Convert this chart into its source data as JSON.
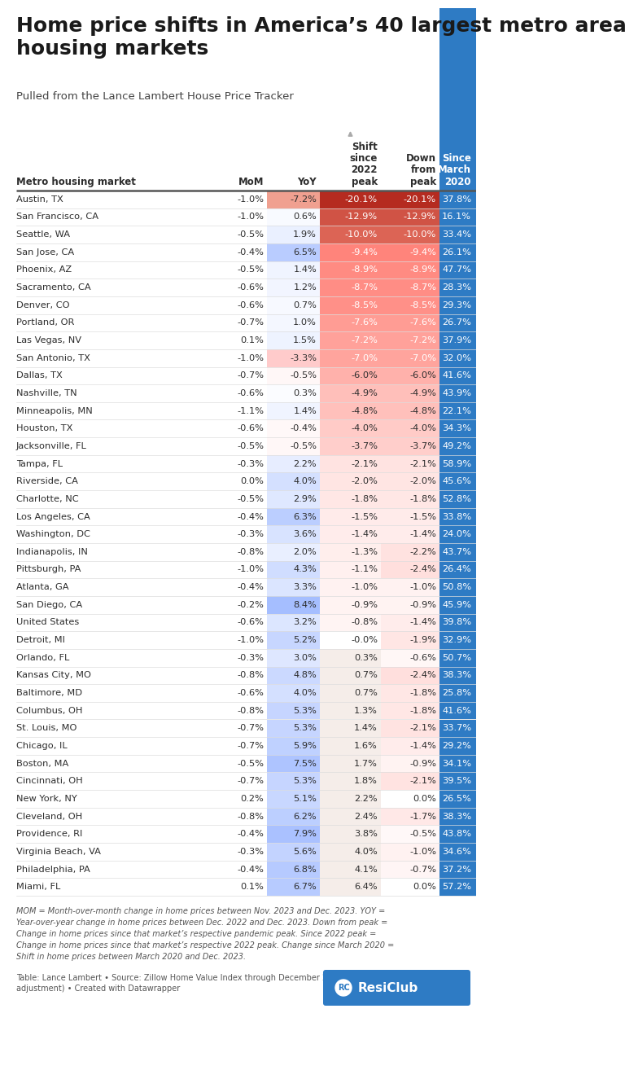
{
  "title": "Home price shifts in America’s 40 largest metro area\nhousing markets",
  "subtitle": "Pulled from the Lance Lambert House Price Tracker",
  "footnote_italic": "MOM = Month-over-month change in home prices between Nov. 2023 and Dec. 2023. YOY =\nYear-over-year change in home prices between Dec. 2022 and Dec. 2023. Down from peak =\nChange in home prices since that market’s respective pandemic peak. Since 2022 peak =\nChange in home prices since that market’s respective 2022 peak. Change since March 2020 =\nShift in home prices between March 2020 and Dec. 2023.",
  "footnote_source": "Table: Lance Lambert • Source: Zillow Home Value Index through December 2023 (with seasonal\nadjustment) • Created with Datawrapper",
  "col_headers": [
    "Metro housing market",
    "MoM",
    "YoY",
    "Shift\nsince\n2022\npeak",
    "Down\nfrom\npeak",
    "Since\nMarch\n2020"
  ],
  "rows": [
    [
      "Austin, TX",
      "-1.0%",
      "-7.2%",
      "-20.1%",
      "-20.1%",
      "37.8%"
    ],
    [
      "San Francisco, CA",
      "-1.0%",
      "0.6%",
      "-12.9%",
      "-12.9%",
      "16.1%"
    ],
    [
      "Seattle, WA",
      "-0.5%",
      "1.9%",
      "-10.0%",
      "-10.0%",
      "33.4%"
    ],
    [
      "San Jose, CA",
      "-0.4%",
      "6.5%",
      "-9.4%",
      "-9.4%",
      "26.1%"
    ],
    [
      "Phoenix, AZ",
      "-0.5%",
      "1.4%",
      "-8.9%",
      "-8.9%",
      "47.7%"
    ],
    [
      "Sacramento, CA",
      "-0.6%",
      "1.2%",
      "-8.7%",
      "-8.7%",
      "28.3%"
    ],
    [
      "Denver, CO",
      "-0.6%",
      "0.7%",
      "-8.5%",
      "-8.5%",
      "29.3%"
    ],
    [
      "Portland, OR",
      "-0.7%",
      "1.0%",
      "-7.6%",
      "-7.6%",
      "26.7%"
    ],
    [
      "Las Vegas, NV",
      "0.1%",
      "1.5%",
      "-7.2%",
      "-7.2%",
      "37.9%"
    ],
    [
      "San Antonio, TX",
      "-1.0%",
      "-3.3%",
      "-7.0%",
      "-7.0%",
      "32.0%"
    ],
    [
      "Dallas, TX",
      "-0.7%",
      "-0.5%",
      "-6.0%",
      "-6.0%",
      "41.6%"
    ],
    [
      "Nashville, TN",
      "-0.6%",
      "0.3%",
      "-4.9%",
      "-4.9%",
      "43.9%"
    ],
    [
      "Minneapolis, MN",
      "-1.1%",
      "1.4%",
      "-4.8%",
      "-4.8%",
      "22.1%"
    ],
    [
      "Houston, TX",
      "-0.6%",
      "-0.4%",
      "-4.0%",
      "-4.0%",
      "34.3%"
    ],
    [
      "Jacksonville, FL",
      "-0.5%",
      "-0.5%",
      "-3.7%",
      "-3.7%",
      "49.2%"
    ],
    [
      "Tampa, FL",
      "-0.3%",
      "2.2%",
      "-2.1%",
      "-2.1%",
      "58.9%"
    ],
    [
      "Riverside, CA",
      "0.0%",
      "4.0%",
      "-2.0%",
      "-2.0%",
      "45.6%"
    ],
    [
      "Charlotte, NC",
      "-0.5%",
      "2.9%",
      "-1.8%",
      "-1.8%",
      "52.8%"
    ],
    [
      "Los Angeles, CA",
      "-0.4%",
      "6.3%",
      "-1.5%",
      "-1.5%",
      "33.8%"
    ],
    [
      "Washington, DC",
      "-0.3%",
      "3.6%",
      "-1.4%",
      "-1.4%",
      "24.0%"
    ],
    [
      "Indianapolis, IN",
      "-0.8%",
      "2.0%",
      "-1.3%",
      "-2.2%",
      "43.7%"
    ],
    [
      "Pittsburgh, PA",
      "-1.0%",
      "4.3%",
      "-1.1%",
      "-2.4%",
      "26.4%"
    ],
    [
      "Atlanta, GA",
      "-0.4%",
      "3.3%",
      "-1.0%",
      "-1.0%",
      "50.8%"
    ],
    [
      "San Diego, CA",
      "-0.2%",
      "8.4%",
      "-0.9%",
      "-0.9%",
      "45.9%"
    ],
    [
      "United States",
      "-0.6%",
      "3.2%",
      "-0.8%",
      "-1.4%",
      "39.8%"
    ],
    [
      "Detroit, MI",
      "-1.0%",
      "5.2%",
      "-0.0%",
      "-1.9%",
      "32.9%"
    ],
    [
      "Orlando, FL",
      "-0.3%",
      "3.0%",
      "0.3%",
      "-0.6%",
      "50.7%"
    ],
    [
      "Kansas City, MO",
      "-0.8%",
      "4.8%",
      "0.7%",
      "-2.4%",
      "38.3%"
    ],
    [
      "Baltimore, MD",
      "-0.6%",
      "4.0%",
      "0.7%",
      "-1.8%",
      "25.8%"
    ],
    [
      "Columbus, OH",
      "-0.8%",
      "5.3%",
      "1.3%",
      "-1.8%",
      "41.6%"
    ],
    [
      "St. Louis, MO",
      "-0.7%",
      "5.3%",
      "1.4%",
      "-2.1%",
      "33.7%"
    ],
    [
      "Chicago, IL",
      "-0.7%",
      "5.9%",
      "1.6%",
      "-1.4%",
      "29.2%"
    ],
    [
      "Boston, MA",
      "-0.5%",
      "7.5%",
      "1.7%",
      "-0.9%",
      "34.1%"
    ],
    [
      "Cincinnati, OH",
      "-0.7%",
      "5.3%",
      "1.8%",
      "-2.1%",
      "39.5%"
    ],
    [
      "New York, NY",
      "0.2%",
      "5.1%",
      "2.2%",
      "0.0%",
      "26.5%"
    ],
    [
      "Cleveland, OH",
      "-0.8%",
      "6.2%",
      "2.4%",
      "-1.7%",
      "38.3%"
    ],
    [
      "Providence, RI",
      "-0.4%",
      "7.9%",
      "3.8%",
      "-0.5%",
      "43.8%"
    ],
    [
      "Virginia Beach, VA",
      "-0.3%",
      "5.6%",
      "4.0%",
      "-1.0%",
      "34.6%"
    ],
    [
      "Philadelphia, PA",
      "-0.4%",
      "6.8%",
      "4.1%",
      "-0.7%",
      "37.2%"
    ],
    [
      "Miami, FL",
      "0.1%",
      "6.7%",
      "6.4%",
      "0.0%",
      "57.2%"
    ]
  ],
  "blue_col_color": "#2e7bc4",
  "text_color": "#2d2d2d"
}
